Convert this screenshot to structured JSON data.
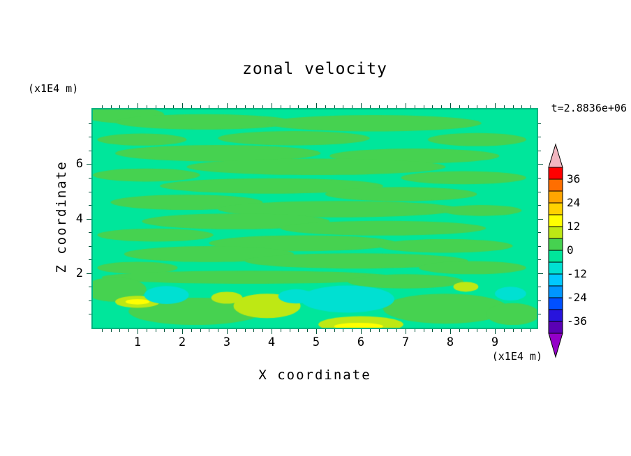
{
  "title": "zonal velocity",
  "time_label": "t=2.8836e+06",
  "axes": {
    "x_title": "X coordinate",
    "y_title": "Z coordinate",
    "x_unit": "(x1E4 m)",
    "y_unit": "(x1E4 m)",
    "x_ticks": [
      "1",
      "2",
      "3",
      "4",
      "5",
      "6",
      "7",
      "8",
      "9"
    ],
    "y_ticks": [
      "2",
      "4",
      "6"
    ]
  },
  "colorbar": {
    "labels": [
      "36",
      "24",
      "12",
      "0",
      "-12",
      "-24",
      "-36"
    ],
    "label_values": [
      36,
      24,
      12,
      0,
      -12,
      -24,
      -36
    ],
    "over_color": "#F2B6C0",
    "under_color": "#9400C8",
    "outline_color": "#000000"
  },
  "frame_color": "#00B380",
  "tick_color": "#00543A",
  "chart_data": {
    "type": "heatmap",
    "subtype": "filled-contour",
    "title": "zonal velocity",
    "xlabel": "X coordinate (x1E4 m)",
    "ylabel": "Z coordinate (x1E4 m)",
    "time_annotation": "t=2.8836e+06",
    "xlim": [
      0,
      9.94
    ],
    "ylim": [
      0,
      8.0
    ],
    "x_major_ticks": [
      1,
      2,
      3,
      4,
      5,
      6,
      7,
      8,
      9
    ],
    "z_major_ticks": [
      2,
      4,
      6
    ],
    "contour_levels": [
      -42,
      -36,
      -30,
      -24,
      -18,
      -12,
      -6,
      0,
      6,
      12,
      18,
      24,
      30,
      36,
      42
    ],
    "band_colors": [
      "#5A00B4",
      "#2814DC",
      "#0050FF",
      "#0096FF",
      "#00C8FF",
      "#00E0D2",
      "#00E69B",
      "#46D250",
      "#BEE814",
      "#FFFF00",
      "#FFD200",
      "#FFA500",
      "#FF6E00",
      "#FF0000"
    ],
    "background_value": -2,
    "legend_position": "right",
    "grid": false,
    "features": [
      {
        "x": 0.7,
        "z": 7.8,
        "rx": 0.9,
        "rz": 0.3,
        "v": 3
      },
      {
        "x": 2.5,
        "z": 7.55,
        "rx": 2.0,
        "rz": 0.28,
        "v": 3
      },
      {
        "x": 6.3,
        "z": 7.5,
        "rx": 2.4,
        "rz": 0.3,
        "v": 3
      },
      {
        "x": 4.5,
        "z": 6.95,
        "rx": 1.7,
        "rz": 0.26,
        "v": 3
      },
      {
        "x": 8.6,
        "z": 6.9,
        "rx": 1.1,
        "rz": 0.24,
        "v": 3
      },
      {
        "x": 1.1,
        "z": 6.9,
        "rx": 1.0,
        "rz": 0.22,
        "v": 3
      },
      {
        "x": 2.8,
        "z": 6.4,
        "rx": 2.3,
        "rz": 0.3,
        "v": 3
      },
      {
        "x": 7.2,
        "z": 6.3,
        "rx": 1.9,
        "rz": 0.27,
        "v": 3
      },
      {
        "x": 5.0,
        "z": 5.9,
        "rx": 2.9,
        "rz": 0.3,
        "v": 3
      },
      {
        "x": 1.2,
        "z": 5.6,
        "rx": 1.2,
        "rz": 0.24,
        "v": 3
      },
      {
        "x": 8.3,
        "z": 5.5,
        "rx": 1.4,
        "rz": 0.24,
        "v": 3
      },
      {
        "x": 4.0,
        "z": 5.2,
        "rx": 2.5,
        "rz": 0.28,
        "v": 3
      },
      {
        "x": 6.9,
        "z": 4.9,
        "rx": 1.7,
        "rz": 0.26,
        "v": 3
      },
      {
        "x": 2.1,
        "z": 4.6,
        "rx": 1.7,
        "rz": 0.28,
        "v": 3
      },
      {
        "x": 5.5,
        "z": 4.35,
        "rx": 2.7,
        "rz": 0.3,
        "v": 3
      },
      {
        "x": 8.7,
        "z": 4.3,
        "rx": 0.9,
        "rz": 0.2,
        "v": 3
      },
      {
        "x": 3.2,
        "z": 3.9,
        "rx": 2.1,
        "rz": 0.29,
        "v": 3
      },
      {
        "x": 6.5,
        "z": 3.65,
        "rx": 2.3,
        "rz": 0.27,
        "v": 3
      },
      {
        "x": 1.4,
        "z": 3.4,
        "rx": 1.3,
        "rz": 0.24,
        "v": 3
      },
      {
        "x": 4.7,
        "z": 3.1,
        "rx": 2.1,
        "rz": 0.29,
        "v": 3
      },
      {
        "x": 7.9,
        "z": 3.0,
        "rx": 1.5,
        "rz": 0.25,
        "v": 3
      },
      {
        "x": 2.6,
        "z": 2.7,
        "rx": 1.9,
        "rz": 0.29,
        "v": 3
      },
      {
        "x": 5.9,
        "z": 2.45,
        "rx": 2.5,
        "rz": 0.28,
        "v": 3
      },
      {
        "x": 1.0,
        "z": 2.2,
        "rx": 0.9,
        "rz": 0.22,
        "v": 3
      },
      {
        "x": 8.5,
        "z": 2.2,
        "rx": 1.2,
        "rz": 0.24,
        "v": 3
      },
      {
        "x": 3.5,
        "z": 1.85,
        "rx": 3.3,
        "rz": 0.24,
        "v": 3
      },
      {
        "x": 7.0,
        "z": 1.7,
        "rx": 1.3,
        "rz": 0.26,
        "v": 3
      },
      {
        "x": 2.3,
        "z": 0.6,
        "rx": 1.5,
        "rz": 0.5,
        "v": 3
      },
      {
        "x": 7.9,
        "z": 0.7,
        "rx": 1.4,
        "rz": 0.55,
        "v": 3
      },
      {
        "x": 0.5,
        "z": 1.4,
        "rx": 0.7,
        "rz": 0.45,
        "v": 3
      },
      {
        "x": 9.4,
        "z": 0.5,
        "rx": 0.6,
        "rz": 0.4,
        "v": 3
      },
      {
        "x": 3.9,
        "z": 0.8,
        "rx": 0.75,
        "rz": 0.45,
        "v": 8
      },
      {
        "x": 3.0,
        "z": 1.1,
        "rx": 0.35,
        "rz": 0.22,
        "v": 8
      },
      {
        "x": 1.0,
        "z": 0.95,
        "rx": 0.5,
        "rz": 0.22,
        "v": 8
      },
      {
        "x": 6.0,
        "z": 0.12,
        "rx": 0.95,
        "rz": 0.3,
        "v": 8
      },
      {
        "x": 8.35,
        "z": 1.5,
        "rx": 0.28,
        "rz": 0.18,
        "v": 8
      },
      {
        "x": 1.0,
        "z": 0.95,
        "rx": 0.27,
        "rz": 0.1,
        "v": 14
      },
      {
        "x": 5.95,
        "z": 0.05,
        "rx": 0.55,
        "rz": 0.13,
        "v": 14
      },
      {
        "x": 1.65,
        "z": 1.2,
        "rx": 0.5,
        "rz": 0.33,
        "v": -8
      },
      {
        "x": 5.7,
        "z": 1.05,
        "rx": 1.05,
        "rz": 0.5,
        "v": -8
      },
      {
        "x": 4.55,
        "z": 1.15,
        "rx": 0.4,
        "rz": 0.26,
        "v": -8
      },
      {
        "x": 9.35,
        "z": 1.25,
        "rx": 0.35,
        "rz": 0.25,
        "v": -8
      }
    ]
  }
}
